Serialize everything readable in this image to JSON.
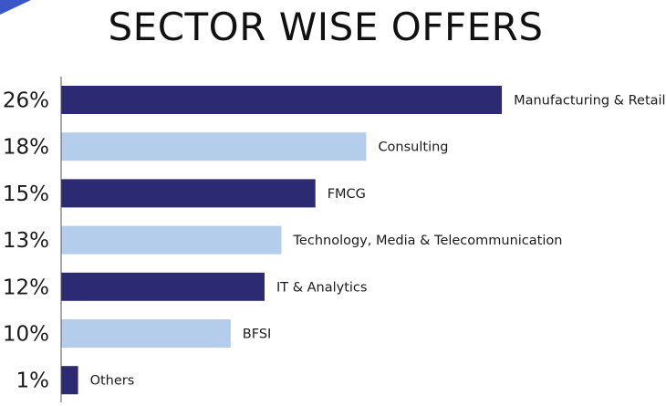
{
  "chart_data": {
    "type": "bar",
    "orientation": "horizontal",
    "title": "SECTOR WISE OFFERS",
    "categories": [
      "Manufacturing & Retail",
      "Consulting",
      "FMCG",
      "Technology, Media & Telecommunication",
      "IT & Analytics",
      "BFSI",
      "Others"
    ],
    "values": [
      26,
      18,
      15,
      13,
      12,
      10,
      1
    ],
    "value_labels": [
      "26%",
      "18%",
      "15%",
      "13%",
      "12%",
      "10%",
      "1%"
    ],
    "bar_colors": [
      "#2c2a72",
      "#b3cdea",
      "#2c2a72",
      "#b3cdea",
      "#2c2a72",
      "#b3cdea",
      "#2c2a72"
    ],
    "accent_color": "#2c2a72",
    "light_color": "#b3cdea",
    "axis_color": "#555555",
    "grid": false,
    "legend": "none"
  }
}
